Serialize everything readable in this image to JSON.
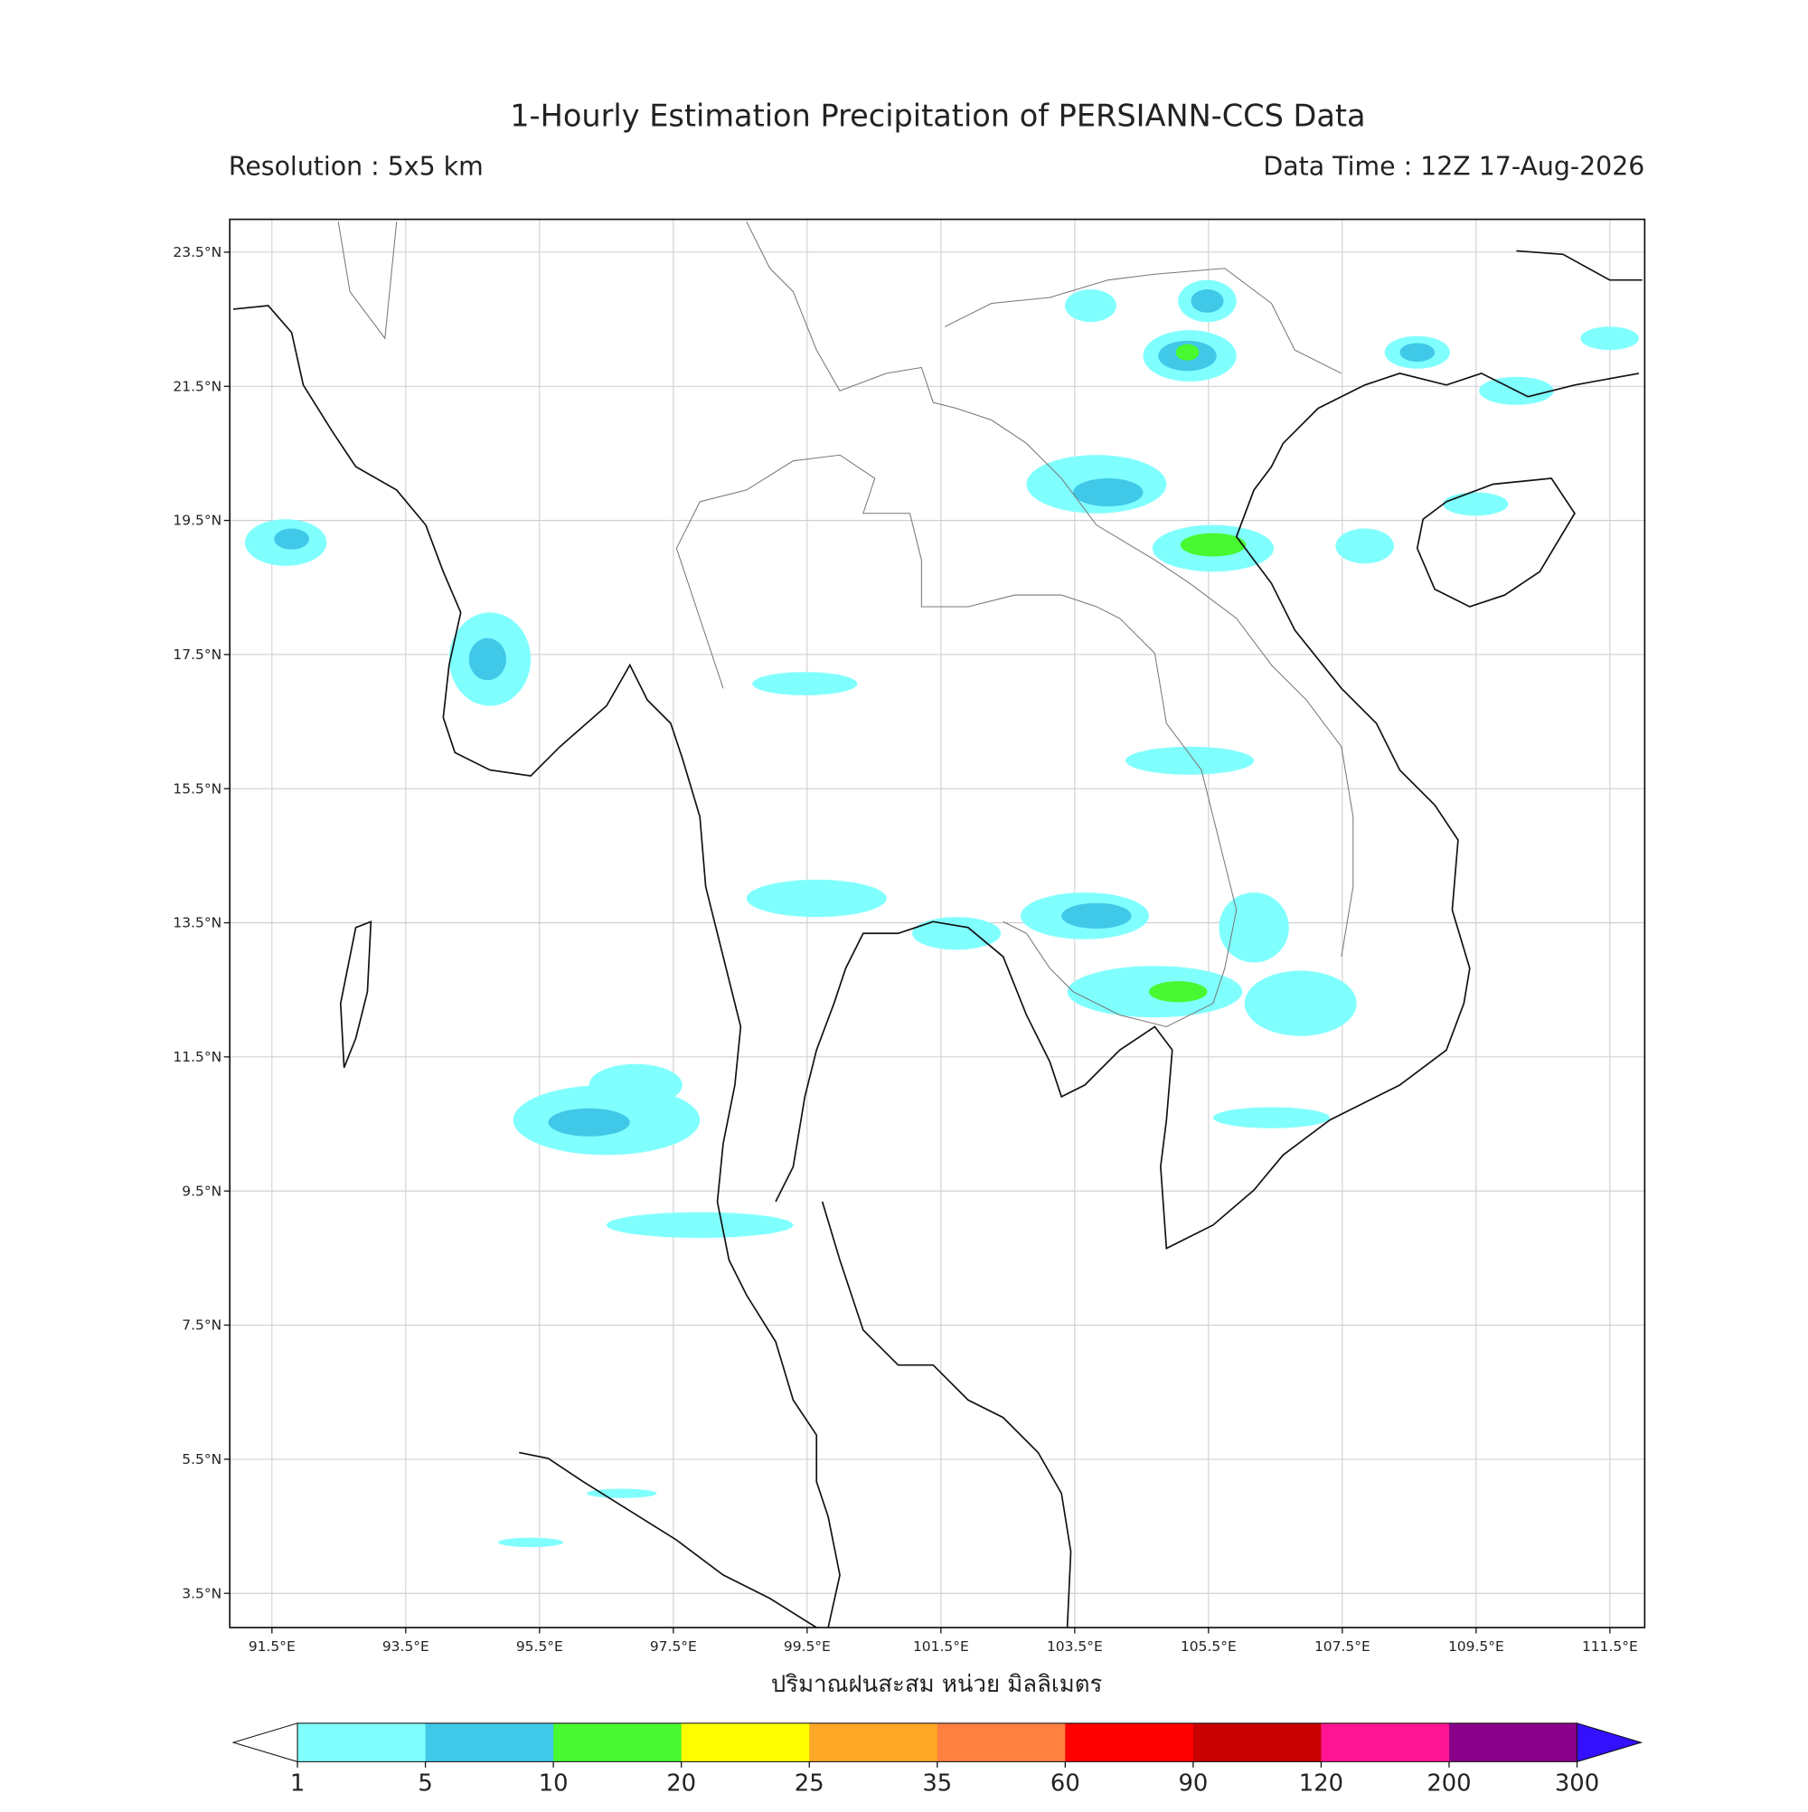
{
  "title": "1-Hourly Estimation Precipitation of PERSIANN-CCS Data",
  "resolution": "Resolution : 5x5 km",
  "data_time": "Data Time : 12Z 17-Aug-2026",
  "map": {
    "lon_range": [
      90.87,
      112.02
    ],
    "lat_range": [
      2.99,
      23.99
    ],
    "lon_ticks": [
      {
        "value": 91.5,
        "label": "91.5°E"
      },
      {
        "value": 93.5,
        "label": "93.5°E"
      },
      {
        "value": 95.5,
        "label": "95.5°E"
      },
      {
        "value": 97.5,
        "label": "97.5°E"
      },
      {
        "value": 99.5,
        "label": "99.5°E"
      },
      {
        "value": 101.5,
        "label": "101.5°E"
      },
      {
        "value": 103.5,
        "label": "103.5°E"
      },
      {
        "value": 105.5,
        "label": "105.5°E"
      },
      {
        "value": 107.5,
        "label": "107.5°E"
      },
      {
        "value": 109.5,
        "label": "109.5°E"
      },
      {
        "value": 111.5,
        "label": "111.5°E"
      }
    ],
    "lat_ticks": [
      {
        "value": 23.5,
        "label": "23.5°N"
      },
      {
        "value": 21.5,
        "label": "21.5°N"
      },
      {
        "value": 19.5,
        "label": "19.5°N"
      },
      {
        "value": 17.5,
        "label": "17.5°N"
      },
      {
        "value": 15.5,
        "label": "15.5°N"
      },
      {
        "value": 13.5,
        "label": "13.5°N"
      },
      {
        "value": 11.5,
        "label": "11.5°N"
      },
      {
        "value": 9.5,
        "label": "9.5°N"
      },
      {
        "value": 7.5,
        "label": "7.5°N"
      },
      {
        "value": 5.5,
        "label": "5.5°N"
      },
      {
        "value": 3.5,
        "label": "3.5°N"
      }
    ],
    "grid": true,
    "x_label": "ปริมาณฝนสะสม หน่วย มิลลิเมตร"
  },
  "colorbar": {
    "levels": [
      1,
      5,
      10,
      20,
      25,
      35,
      60,
      90,
      120,
      200,
      300
    ],
    "colors": [
      "#80ffff",
      "#40c8e8",
      "#48f830",
      "#ffff00",
      "#ffa726",
      "#ff8040",
      "#ff0000",
      "#c80000",
      "#ff1493",
      "#8b008b"
    ],
    "under_color": "#ffffff",
    "over_color": "#3311ff"
  }
}
